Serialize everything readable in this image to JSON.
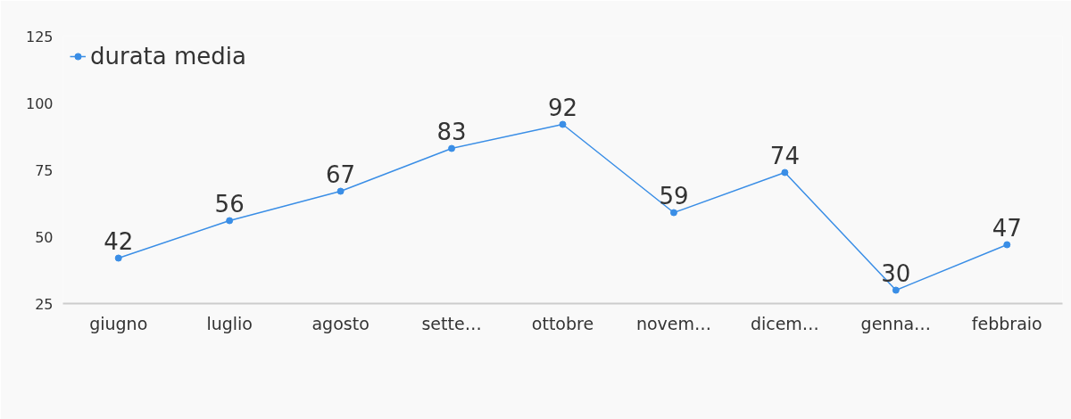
{
  "chart_data": {
    "type": "line",
    "categories": [
      "giugno",
      "luglio",
      "agosto",
      "sette…",
      "ottobre",
      "novem…",
      "dicem…",
      "genna…",
      "febbraio"
    ],
    "series": [
      {
        "name": "durata media",
        "color": "#3a8ee6",
        "values": [
          42,
          56,
          67,
          83,
          92,
          59,
          74,
          30,
          47
        ]
      }
    ],
    "ylim": [
      25,
      125
    ],
    "yticks": [
      25,
      50,
      75,
      100,
      125
    ],
    "data_labels": true,
    "grid": false,
    "legend": "top left",
    "marker": "circle",
    "line_style": "solid"
  }
}
